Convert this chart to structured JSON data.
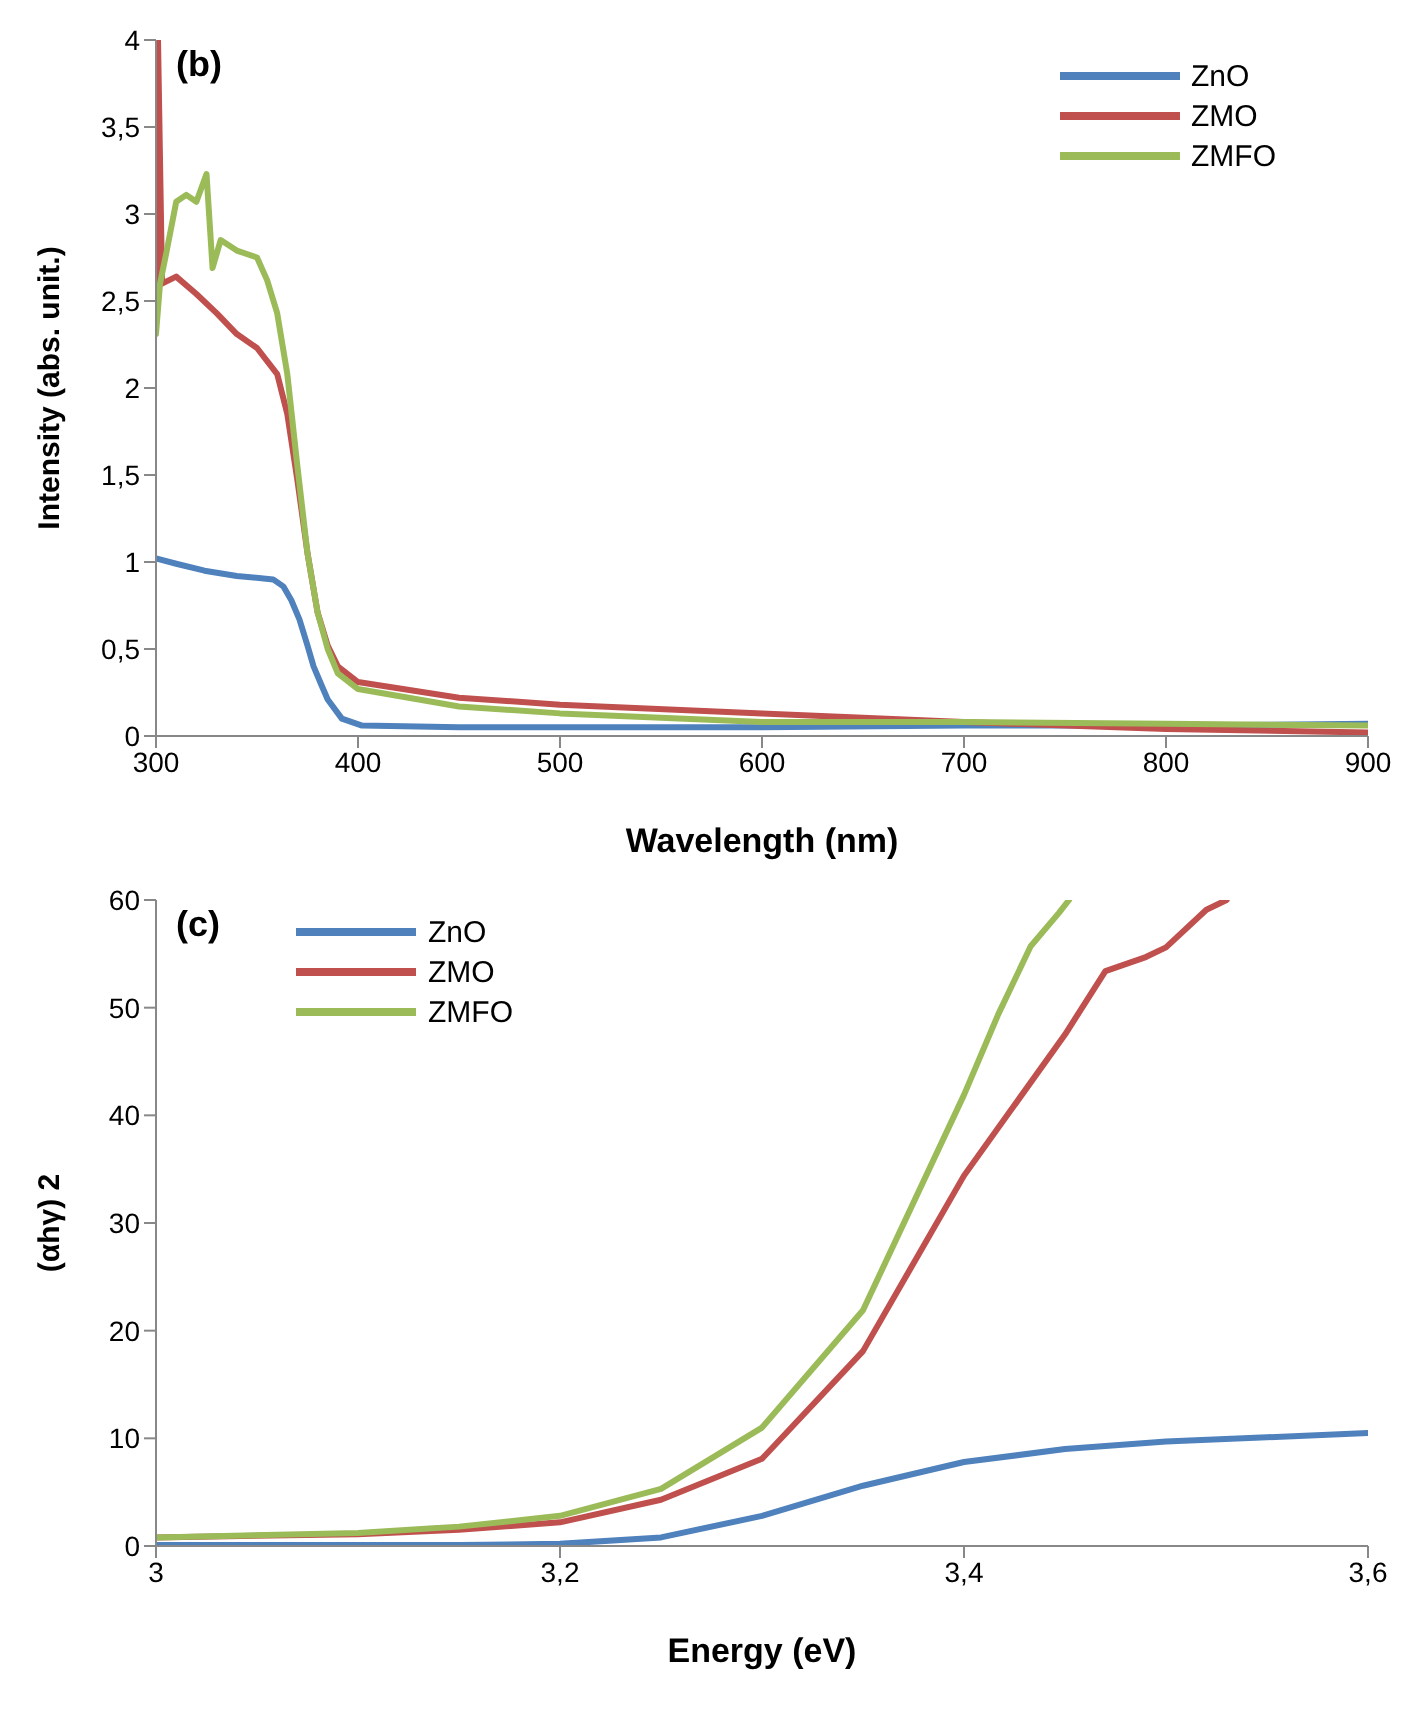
{
  "chart_data": [
    {
      "type": "line",
      "annotations": [
        "(b)"
      ],
      "xlabel": "Wavelength (nm)",
      "ylabel": "Intensity (abs. unit.)",
      "legend": "top right",
      "xlim": [
        300,
        900
      ],
      "xticks": [
        300,
        400,
        500,
        600,
        700,
        800,
        900
      ],
      "ylim": [
        0,
        4
      ],
      "yticks": [
        0,
        {
          "value": 0.5,
          "label": "0,5"
        },
        1,
        {
          "value": 1.5,
          "label": "1,5"
        },
        2,
        {
          "value": 2.5,
          "label": "2,5"
        },
        3,
        {
          "value": 3.5,
          "label": "3,5"
        },
        4
      ],
      "series": [
        {
          "name": "ZnO",
          "color": "#4f81bd",
          "x": [
            300,
            310,
            324,
            340,
            358,
            363,
            367,
            371,
            375,
            378,
            382,
            385,
            392,
            402,
            450,
            500,
            600,
            700,
            800,
            900
          ],
          "values": [
            1.02,
            0.99,
            0.95,
            0.92,
            0.9,
            0.86,
            0.78,
            0.67,
            0.52,
            0.4,
            0.29,
            0.21,
            0.1,
            0.06,
            0.05,
            0.05,
            0.05,
            0.06,
            0.06,
            0.07
          ]
        },
        {
          "name": "ZMO",
          "color": "#c0504d",
          "x": [
            300,
            301,
            303,
            310,
            320,
            330,
            340,
            350,
            360,
            365,
            370,
            375,
            380,
            385,
            390,
            400,
            450,
            500,
            600,
            700,
            800,
            900
          ],
          "values": [
            2.4,
            4,
            2.6,
            2.64,
            2.54,
            2.43,
            2.31,
            2.23,
            2.08,
            1.85,
            1.47,
            1.05,
            0.71,
            0.52,
            0.4,
            0.31,
            0.22,
            0.18,
            0.13,
            0.08,
            0.04,
            0.02
          ]
        },
        {
          "name": "ZMFO",
          "color": "#9bbb59",
          "x": [
            300,
            302,
            305,
            310,
            315,
            320,
            325,
            328,
            332,
            340,
            350,
            355,
            360,
            365,
            370,
            375,
            380,
            385,
            390,
            400,
            450,
            500,
            600,
            700,
            800,
            900
          ],
          "values": [
            2.31,
            2.6,
            2.77,
            3.07,
            3.11,
            3.07,
            3.23,
            2.69,
            2.85,
            2.79,
            2.75,
            2.62,
            2.43,
            2.08,
            1.55,
            1.05,
            0.71,
            0.5,
            0.36,
            0.27,
            0.17,
            0.13,
            0.08,
            0.08,
            0.07,
            0.06
          ]
        }
      ]
    },
    {
      "type": "line",
      "annotations": [
        "(c)"
      ],
      "xlabel": "Energy (eV)",
      "ylabel": "(αhγ) 2",
      "legend": "top left",
      "xlim": [
        3,
        3.6
      ],
      "xticks": [
        3,
        {
          "value": 3.2,
          "label": "3,2"
        },
        {
          "value": 3.4,
          "label": "3,4"
        },
        {
          "value": 3.6,
          "label": "3,6"
        }
      ],
      "ylim": [
        0,
        60
      ],
      "yticks": [
        0,
        10,
        20,
        30,
        40,
        50,
        60
      ],
      "series": [
        {
          "name": "ZnO",
          "color": "#4f81bd",
          "x": [
            3,
            3.1,
            3.15,
            3.2,
            3.25,
            3.3,
            3.35,
            3.4,
            3.45,
            3.5,
            3.55,
            3.6
          ],
          "values": [
            0.1,
            0.1,
            0.1,
            0.2,
            0.8,
            2.8,
            5.6,
            7.8,
            9,
            9.7,
            10.1,
            10.5
          ]
        },
        {
          "name": "ZMO",
          "color": "#c0504d",
          "x": [
            3,
            3.1,
            3.15,
            3.2,
            3.25,
            3.3,
            3.35,
            3.4,
            3.45,
            3.47,
            3.49,
            3.5,
            3.52,
            3.53
          ],
          "values": [
            0.8,
            1.1,
            1.5,
            2.2,
            4.3,
            8.1,
            18.1,
            34.4,
            47.5,
            53.4,
            54.7,
            55.6,
            59.1,
            60
          ]
        },
        {
          "name": "ZMFO",
          "color": "#9bbb59",
          "x": [
            3,
            3.1,
            3.15,
            3.2,
            3.25,
            3.3,
            3.35,
            3.4,
            3.417,
            3.433,
            3.447,
            3.452
          ],
          "values": [
            0.8,
            1.2,
            1.8,
            2.8,
            5.3,
            11,
            21.9,
            41.9,
            49.4,
            55.7,
            58.8,
            60
          ]
        }
      ]
    }
  ]
}
